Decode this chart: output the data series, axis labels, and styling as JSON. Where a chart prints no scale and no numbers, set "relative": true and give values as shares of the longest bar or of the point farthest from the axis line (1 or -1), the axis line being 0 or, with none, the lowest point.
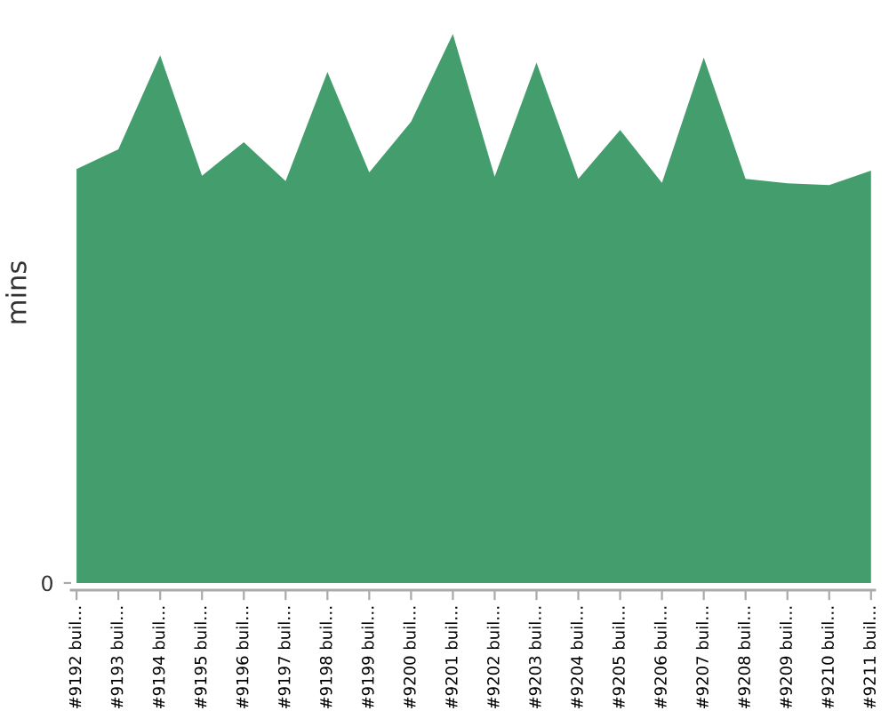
{
  "chart_data": {
    "type": "area",
    "ylabel": "mins",
    "relative": true,
    "color": "#449d6d",
    "categories": [
      "#9192 buil…",
      "#9193 buil…",
      "#9194 buil…",
      "#9195 buil…",
      "#9196 buil…",
      "#9197 buil…",
      "#9198 buil…",
      "#9199 buil…",
      "#9200 buil…",
      "#9201 buil…",
      "#9202 buil…",
      "#9203 buil…",
      "#9204 buil…",
      "#9205 buil…",
      "#9206 buil…",
      "#9207 buil…",
      "#9208 buil…",
      "#9209 buil…",
      "#9210 buil…",
      "#9211 buil…"
    ],
    "values": [
      0.754,
      0.79,
      0.961,
      0.742,
      0.803,
      0.732,
      0.931,
      0.748,
      0.84,
      1,
      0.74,
      0.948,
      0.736,
      0.825,
      0.729,
      0.957,
      0.736,
      0.728,
      0.725,
      0.751
    ],
    "annotations": [
      "0"
    ]
  }
}
